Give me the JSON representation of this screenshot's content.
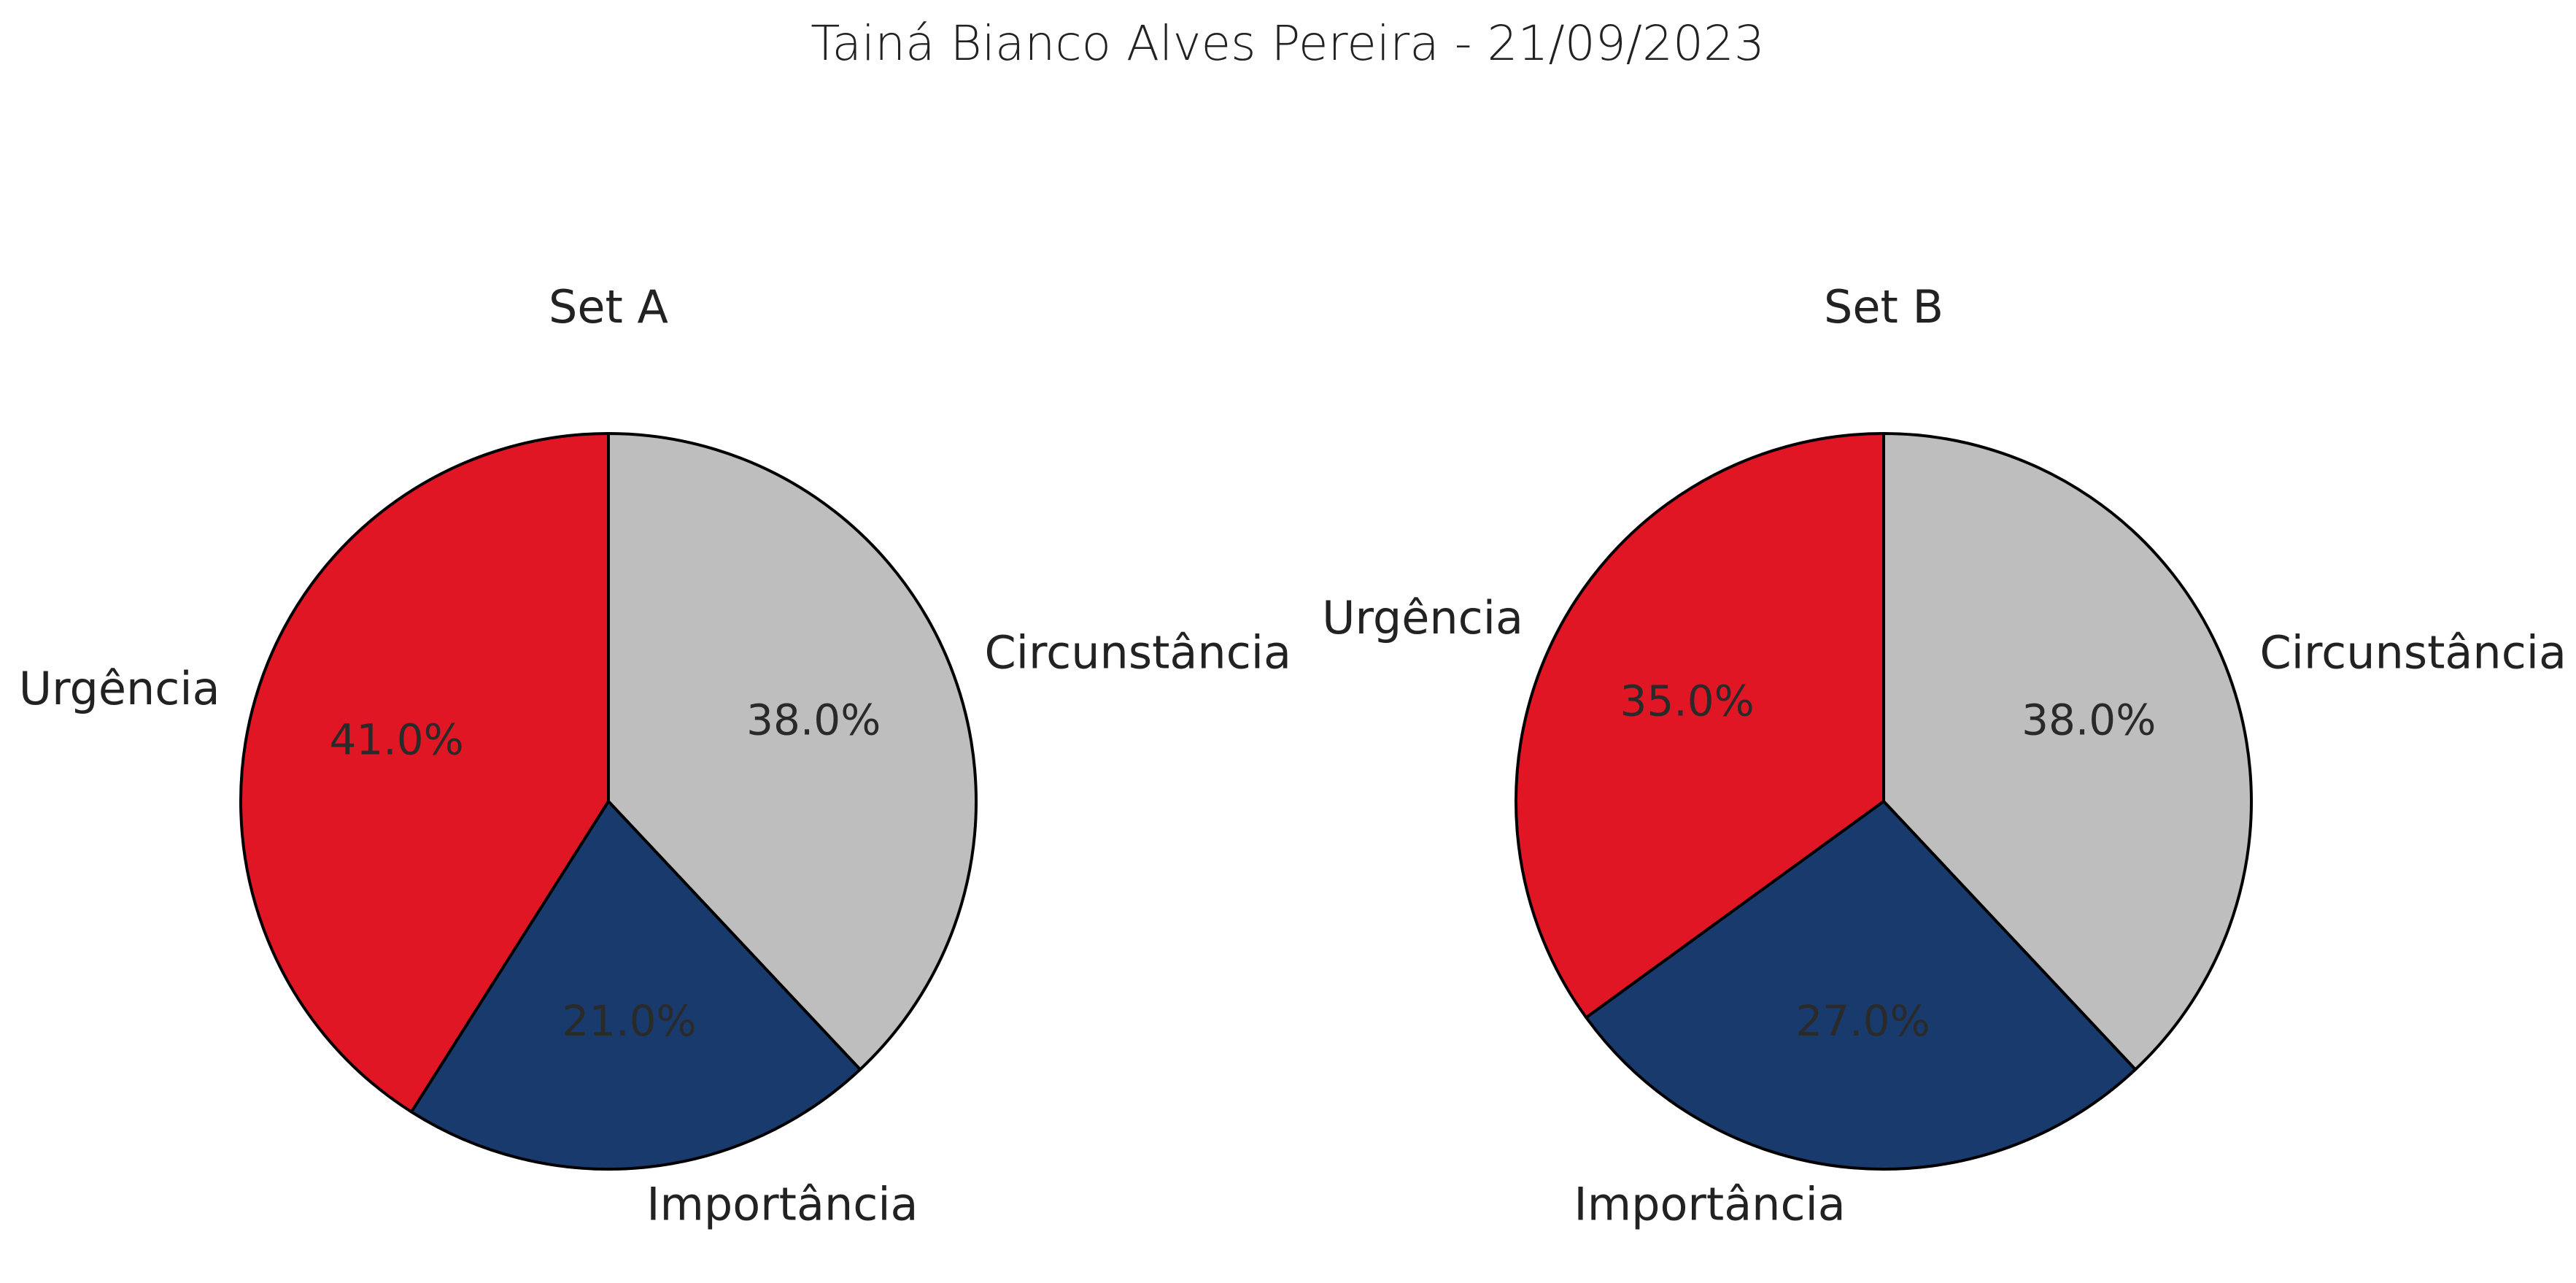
{
  "title": "Tainá Bianco Alves Pereira - 21/09/2023",
  "chart_data": [
    {
      "type": "pie",
      "title": "Set A",
      "labels": [
        "Circunstância",
        "Importância",
        "Urgência"
      ],
      "values": [
        38.0,
        21.0,
        41.0
      ],
      "value_labels": [
        "38.0%",
        "21.0%",
        "41.0%"
      ],
      "colors": [
        "#bdbebd",
        "#193a6d",
        "#e11624"
      ],
      "start_angle": "12 o'clock",
      "direction": "clockwise"
    },
    {
      "type": "pie",
      "title": "Set B",
      "labels": [
        "Circunstância",
        "Importância",
        "Urgência"
      ],
      "values": [
        38.0,
        27.0,
        35.0
      ],
      "value_labels": [
        "38.0%",
        "27.0%",
        "35.0%"
      ],
      "colors": [
        "#bdbebd",
        "#193a6d",
        "#e11624"
      ],
      "start_angle": "12 o'clock",
      "direction": "clockwise"
    }
  ]
}
